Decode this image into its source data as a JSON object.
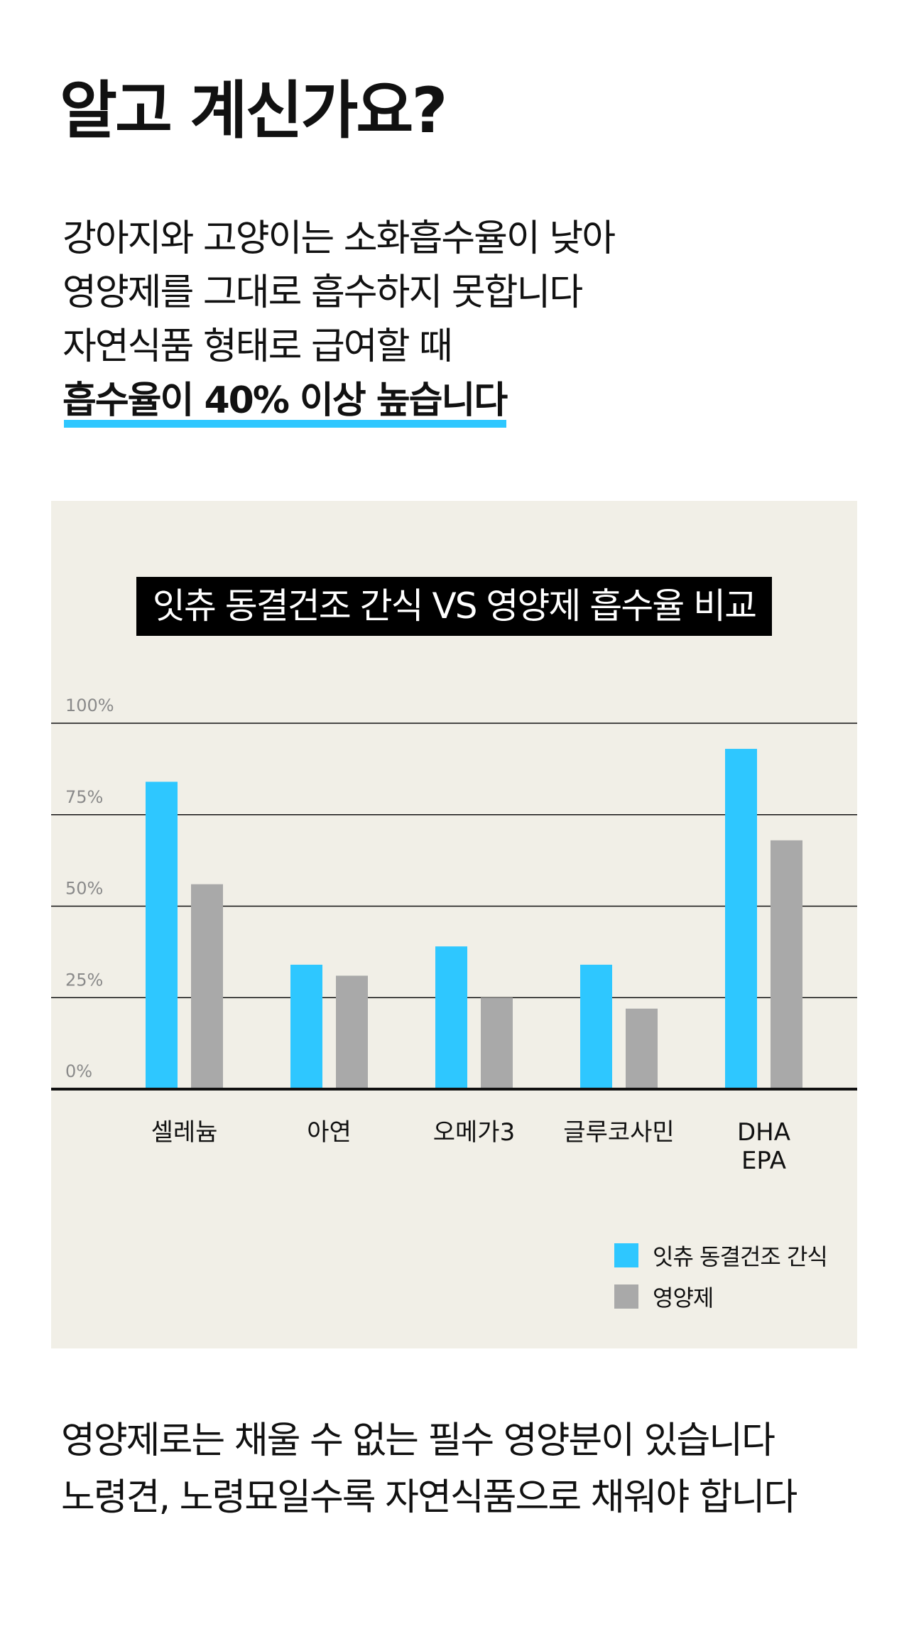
{
  "headline": "알고 계신가요?",
  "intro": {
    "lines": [
      "강아지와 고양이는 소화흡수율이 낮아",
      "영양제를 그대로 흡수하지 못합니다",
      "자연식품 형태로 급여할 때"
    ],
    "emphasis": "흡수율이 40% 이상 높습니다"
  },
  "colors": {
    "accent": "#2ec7ff",
    "supplement": "#a9a9a9",
    "panel": "#f1efe7"
  },
  "chart_data": {
    "type": "bar",
    "title": "잇츄 동결건조 간식 VS 영양제 흡수율 비교",
    "categories": [
      "셀레늄",
      "아연",
      "오메가3",
      "글루코사민",
      "DHA\nEPA"
    ],
    "series": [
      {
        "name": "잇츄 동결건조 간식",
        "color": "#2ec7ff",
        "values": [
          84,
          34,
          39,
          34,
          93
        ]
      },
      {
        "name": "영양제",
        "color": "#a9a9a9",
        "values": [
          56,
          31,
          25,
          22,
          68
        ]
      }
    ],
    "ylim": [
      0,
      100
    ],
    "yticks": [
      0,
      25,
      50,
      75,
      100
    ],
    "ytick_labels": [
      "0%",
      "25%",
      "50%",
      "75%",
      "100%"
    ],
    "grid": true,
    "legend_position": "bottom-right"
  },
  "closing": {
    "lines": [
      "영양제로는 채울 수 없는 필수 영양분이 있습니다",
      "노령견, 노령묘일수록 자연식품으로 채워야 합니다"
    ]
  }
}
